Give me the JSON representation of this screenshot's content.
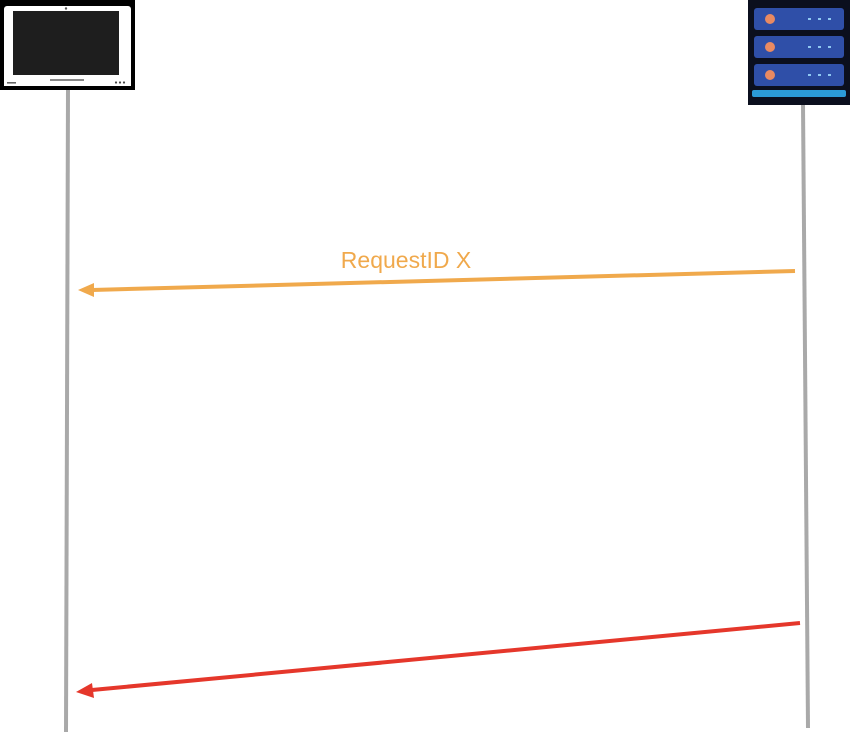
{
  "messages": [
    {
      "from": "server",
      "to": "client",
      "label": "RequestID X",
      "color": "#F0A94C"
    },
    {
      "from": "server",
      "to": "client",
      "label": "",
      "color": "#E5372B"
    }
  ],
  "icons": {
    "client": "laptop-icon",
    "server": "server-rack-icon"
  },
  "colors": {
    "lifeline": "#A9A9A9",
    "laptop_frame": "#000000",
    "laptop_screen": "#1E1E1E",
    "server_bg": "#0B0F1E",
    "server_unit": "#2F4FA8",
    "server_light": "#E98A62",
    "server_base": "#2B9BD8"
  }
}
